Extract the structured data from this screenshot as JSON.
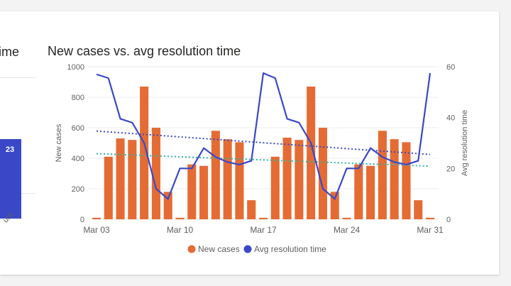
{
  "left_panel": {
    "title_fragment": "ime",
    "bar_value_label": "23",
    "axis_text_fragment": "unt",
    "bar_color": "#3a48c8"
  },
  "chart_data": {
    "type": "bar+line",
    "title": "New cases vs. avg resolution time",
    "x_tick_labels": [
      "Mar 03",
      "Mar 10",
      "Mar 17",
      "Mar 24",
      "Mar 31"
    ],
    "x_tick_indices": [
      0,
      7,
      14,
      21,
      28
    ],
    "x_categories": [
      "Mar 03",
      "Mar 04",
      "Mar 05",
      "Mar 06",
      "Mar 07",
      "Mar 08",
      "Mar 09",
      "Mar 10",
      "Mar 11",
      "Mar 12",
      "Mar 13",
      "Mar 14",
      "Mar 15",
      "Mar 16",
      "Mar 17",
      "Mar 18",
      "Mar 19",
      "Mar 20",
      "Mar 21",
      "Mar 22",
      "Mar 23",
      "Mar 24",
      "Mar 25",
      "Mar 26",
      "Mar 27",
      "Mar 28",
      "Mar 29",
      "Mar 30",
      "Mar 31"
    ],
    "y_left": {
      "label": "New cases",
      "range": [
        0,
        1000
      ],
      "ticks": [
        0,
        200,
        400,
        600,
        800,
        1000
      ]
    },
    "y_right": {
      "label": "Avg resolution time",
      "range": [
        0,
        60
      ],
      "ticks": [
        0,
        20,
        40,
        60
      ]
    },
    "series": [
      {
        "name": "New cases",
        "type": "bar",
        "axis": "left",
        "color": "#e46c34",
        "values": [
          10,
          410,
          530,
          520,
          870,
          600,
          180,
          10,
          360,
          350,
          580,
          525,
          505,
          125,
          10,
          410,
          535,
          520,
          870,
          600,
          180,
          10,
          360,
          350,
          580,
          525,
          505,
          125,
          10
        ],
        "trend_start": 430,
        "trend_end": 348,
        "trend_color": "#2fb5a4"
      },
      {
        "name": "Avg resolution time",
        "type": "line",
        "axis": "right",
        "color": "#3a48c8",
        "values": [
          57,
          55.5,
          39.5,
          38,
          30,
          12,
          8,
          20,
          20,
          28,
          24.5,
          22.5,
          21.5,
          23,
          57.5,
          55.5,
          39.5,
          38,
          30,
          12,
          8,
          20,
          20,
          28,
          24.5,
          22.5,
          21.5,
          23,
          57.5
        ],
        "trend_start": 34.7,
        "trend_end": 25.5,
        "trend_color": "#3a48c8"
      }
    ],
    "legend": {
      "position": "bottom-center"
    },
    "grid": true
  }
}
